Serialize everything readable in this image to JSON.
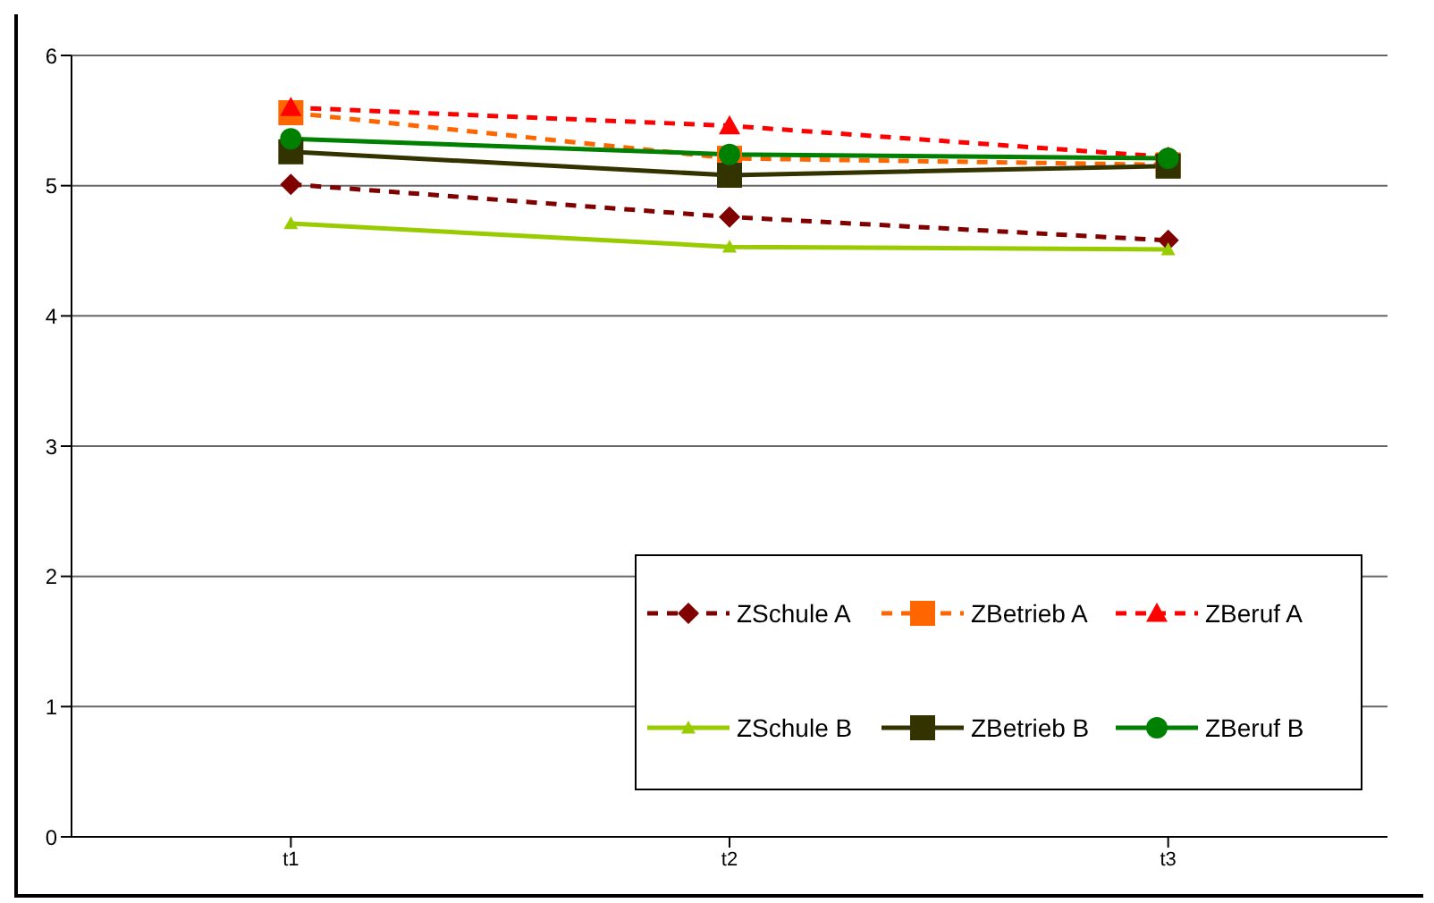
{
  "chart_data": {
    "type": "line",
    "categories": [
      "t1",
      "t2",
      "t3"
    ],
    "series": [
      {
        "name": "ZSchule A",
        "color": "#800000",
        "values": [
          5.01,
          4.76,
          4.58
        ],
        "marker": "diamond",
        "line_style": "dashed"
      },
      {
        "name": "ZBetrieb A",
        "color": "#ff6600",
        "values": [
          5.56,
          5.21,
          5.16
        ],
        "marker": "square",
        "line_style": "dashed"
      },
      {
        "name": "ZBeruf A",
        "color": "#ff0000",
        "values": [
          5.6,
          5.46,
          5.22
        ],
        "marker": "triangle",
        "line_style": "dashed"
      },
      {
        "name": "ZSchule B",
        "color": "#99cc00",
        "values": [
          4.71,
          4.53,
          4.51
        ],
        "marker": "triangle",
        "line_style": "solid"
      },
      {
        "name": "ZBetrieb B",
        "color": "#333300",
        "values": [
          5.26,
          5.08,
          5.15
        ],
        "marker": "square",
        "line_style": "solid"
      },
      {
        "name": "ZBeruf B",
        "color": "#008000",
        "values": [
          5.36,
          5.24,
          5.21
        ],
        "marker": "circle",
        "line_style": "solid"
      }
    ],
    "ylim": [
      0,
      6
    ],
    "yticks": [
      0,
      1,
      2,
      3,
      4,
      5,
      6
    ],
    "grid": "y",
    "legend": "bottom right"
  }
}
